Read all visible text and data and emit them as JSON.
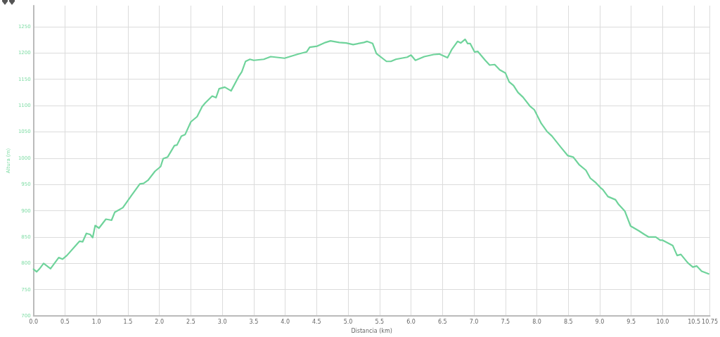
{
  "chart_data": {
    "type": "line",
    "xlabel": "Distancia (km)",
    "ylabel": "Altura (m)",
    "x": [
      0,
      0.05,
      0.09,
      0.16,
      0.27,
      0.4,
      0.46,
      0.53,
      0.67,
      0.73,
      0.78,
      0.84,
      0.9,
      0.94,
      0.98,
      1.04,
      1.15,
      1.24,
      1.29,
      1.42,
      1.55,
      1.69,
      1.75,
      1.82,
      1.93,
      2.02,
      2.06,
      2.13,
      2.24,
      2.28,
      2.35,
      2.41,
      2.5,
      2.6,
      2.68,
      2.73,
      2.84,
      2.9,
      2.95,
      3.04,
      3.14,
      3.26,
      3.31,
      3.37,
      3.44,
      3.5,
      3.66,
      3.77,
      3.99,
      4.21,
      4.34,
      4.39,
      4.51,
      4.64,
      4.72,
      4.86,
      4.97,
      5.08,
      5.25,
      5.3,
      5.39,
      5.45,
      5.61,
      5.68,
      5.76,
      5.94,
      6.0,
      6.07,
      6.21,
      6.36,
      6.45,
      6.58,
      6.65,
      6.74,
      6.79,
      6.86,
      6.9,
      6.94,
      7.01,
      7.06,
      7.18,
      7.25,
      7.33,
      7.41,
      7.5,
      7.56,
      7.63,
      7.7,
      7.78,
      7.89,
      7.96,
      8.07,
      8.16,
      8.24,
      8.38,
      8.49,
      8.58,
      8.67,
      8.78,
      8.85,
      8.94,
      9.02,
      9.05,
      9.13,
      9.25,
      9.3,
      9.4,
      9.49,
      9.62,
      9.71,
      9.78,
      9.89,
      9.96,
      10.0,
      10.16,
      10.23,
      10.29,
      10.4,
      10.48,
      10.54,
      10.62,
      10.73
    ],
    "series": [
      {
        "color": "#6fd39b",
        "values": [
          789,
          784,
          789,
          800,
          790,
          811,
          808,
          815,
          834,
          842,
          841,
          857,
          855,
          849,
          872,
          867,
          884,
          882,
          897,
          906,
          928,
          951,
          952,
          958,
          975,
          984,
          999,
          1002,
          1024,
          1025,
          1042,
          1045,
          1069,
          1079,
          1098,
          1105,
          1118,
          1115,
          1132,
          1135,
          1128,
          1155,
          1164,
          1184,
          1188,
          1186,
          1188,
          1193,
          1190,
          1198,
          1202,
          1211,
          1213,
          1220,
          1223,
          1220,
          1219,
          1216,
          1220,
          1222,
          1218,
          1199,
          1184,
          1184,
          1188,
          1192,
          1196,
          1186,
          1193,
          1197,
          1198,
          1191,
          1207,
          1222,
          1219,
          1226,
          1218,
          1218,
          1202,
          1203,
          1186,
          1177,
          1178,
          1168,
          1162,
          1145,
          1138,
          1125,
          1116,
          1099,
          1092,
          1066,
          1051,
          1042,
          1021,
          1005,
          1002,
          988,
          977,
          962,
          953,
          943,
          940,
          927,
          921,
          912,
          899,
          871,
          862,
          855,
          850,
          850,
          844,
          844,
          834,
          815,
          817,
          801,
          793,
          795,
          785,
          780
        ]
      }
    ],
    "xlim": [
      0,
      10.75
    ],
    "xticks": [
      {
        "value": 0,
        "label": "0.0"
      },
      0.5,
      {
        "value": 1,
        "label": "1.0"
      },
      1.5,
      {
        "value": 2,
        "label": "2.0"
      },
      2.5,
      {
        "value": 3,
        "label": "3.0"
      },
      3.5,
      {
        "value": 4,
        "label": "4.0"
      },
      4.5,
      {
        "value": 5,
        "label": "5.0"
      },
      5.5,
      {
        "value": 6,
        "label": "6.0"
      },
      6.5,
      {
        "value": 7,
        "label": "7.0"
      },
      7.5,
      {
        "value": 8,
        "label": "8.0"
      },
      8.5,
      {
        "value": 9,
        "label": "9.0"
      },
      9.5,
      {
        "value": 10,
        "label": "10.0"
      },
      10.5,
      10.75
    ],
    "ylim": [
      700,
      1290
    ],
    "yticks": [
      700,
      750,
      800,
      850,
      900,
      950,
      1000,
      1050,
      1100,
      1150,
      1200,
      1250
    ],
    "grid": true,
    "marker": "none",
    "line_style": "solid"
  }
}
